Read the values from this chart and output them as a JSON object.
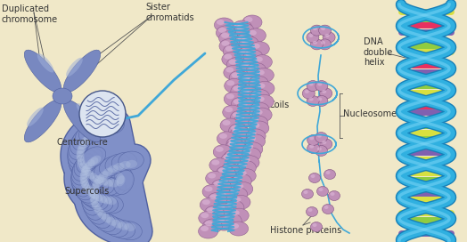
{
  "background": "#f0e8c8",
  "chr_color": "#7888c0",
  "chr_highlight": "#a0b0d8",
  "chr_shadow": "#5060a0",
  "supercoil_color": "#8090c8",
  "supercoil_highlight": "#b0c0e0",
  "supercoil_shadow": "#5060a0",
  "coil_pink": "#c090b8",
  "coil_pink_hi": "#ddb8d8",
  "coil_blue": "#40a8d8",
  "nuc_pink": "#c090b8",
  "nuc_pink_hi": "#ddb8d8",
  "dna_blue": "#30b0e0",
  "dna_yellow": "#d8e040",
  "dna_green": "#90cc40",
  "dna_red": "#e83060",
  "dna_purple": "#8060b0",
  "dna_white": "#e0f0ff",
  "label_color": "#333333",
  "line_color": "#555555",
  "font_size": 7.0,
  "labels": {
    "duplicated_chromosome": "Duplicated\nchromosome",
    "sister_chromatids": "Sister\nchromatids",
    "centromere": "Centromere",
    "supercoils": "Supercoils",
    "coils": "Coils",
    "nucleosome": "Nucleosome",
    "dna_double_helix": "DNA\ndouble\nhelix",
    "histone_proteins": "Histone proteins"
  }
}
